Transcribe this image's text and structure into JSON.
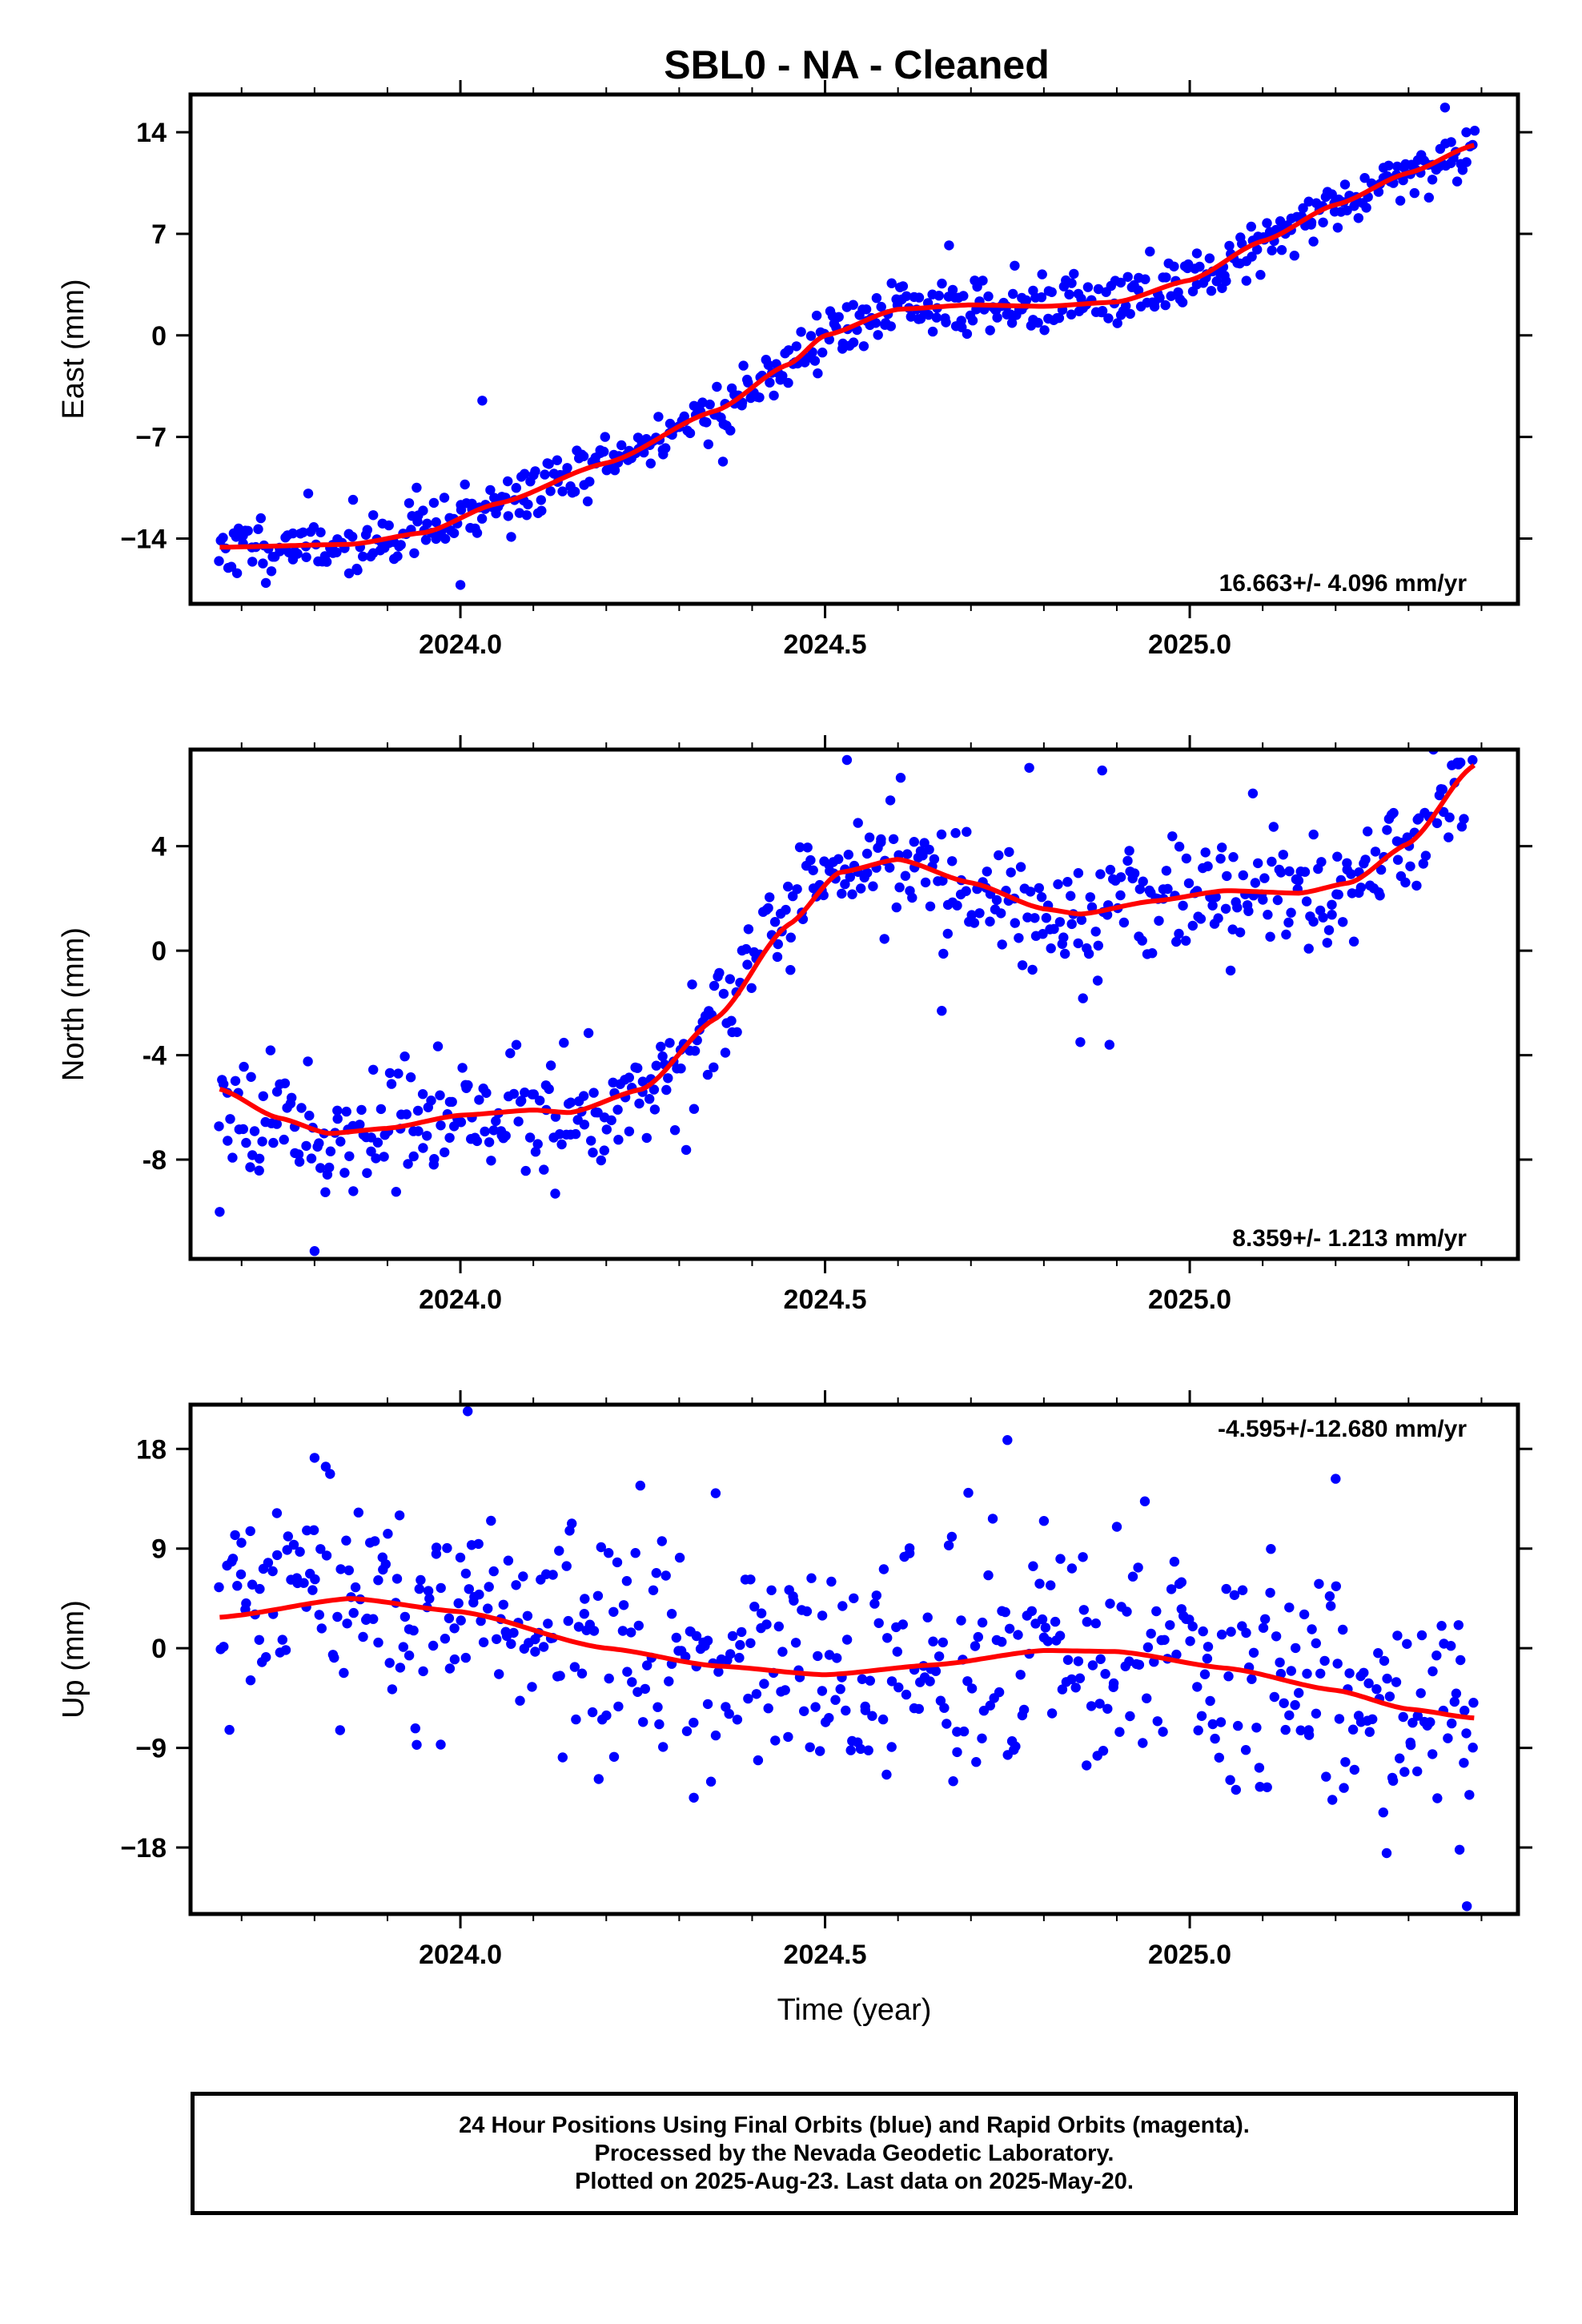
{
  "title": "SBL0  - NA - Cleaned",
  "footer": {
    "line1": "24 Hour Positions Using Final Orbits (blue) and Rapid Orbits (magenta).",
    "line2": "Processed by the Nevada Geodetic Laboratory.",
    "line3": "Plotted on 2025-Aug-23. Last data on 2025-May-20."
  },
  "colors": {
    "points": "#0000ff",
    "fit": "#ff0000",
    "frame": "#000000"
  },
  "chart_data": [
    {
      "type": "scatter",
      "ylabel": "East (mm)",
      "xlabel": "",
      "xlim": [
        2023.63,
        2025.45
      ],
      "ylim": [
        -18.5,
        16.6
      ],
      "yticks": [
        -14,
        -7,
        0,
        7,
        14
      ],
      "ytick_labels": [
        "−14",
        "−7",
        "0",
        "7",
        "14"
      ],
      "xticks": [
        2024.0,
        2024.5,
        2025.0
      ],
      "xtick_labels": [
        "2024.0",
        "2024.5",
        "2025.0"
      ],
      "rate_label": "16.663+/- 4.096 mm/yr",
      "rate_position": "bottom-right",
      "series": [
        {
          "kind": "points",
          "noise": 1.0,
          "seed": 11,
          "outliers": [
            [
              2024.0,
              -17.2
            ],
            [
              2023.94,
              -10.5
            ],
            [
              2024.03,
              -4.5
            ],
            [
              2024.67,
              6.2
            ],
            [
              2024.76,
              4.8
            ],
            [
              2024.36,
              -8.7
            ],
            [
              2025.35,
              15.7
            ]
          ]
        },
        {
          "kind": "fit",
          "knots": [
            [
              2023.67,
              -14.6
            ],
            [
              2023.85,
              -14.4
            ],
            [
              2023.95,
              -13.6
            ],
            [
              2024.05,
              -11.6
            ],
            [
              2024.2,
              -8.8
            ],
            [
              2024.35,
              -5.2
            ],
            [
              2024.45,
              -2.0
            ],
            [
              2024.5,
              0.0
            ],
            [
              2024.6,
              1.8
            ],
            [
              2024.7,
              2.1
            ],
            [
              2024.8,
              2.0
            ],
            [
              2024.9,
              2.3
            ],
            [
              2025.0,
              3.8
            ],
            [
              2025.1,
              6.5
            ],
            [
              2025.2,
              9.0
            ],
            [
              2025.3,
              11.2
            ],
            [
              2025.39,
              13.1
            ]
          ]
        }
      ]
    },
    {
      "type": "scatter",
      "ylabel": "North (mm)",
      "xlabel": "",
      "xlim": [
        2023.63,
        2025.45
      ],
      "ylim": [
        -11.8,
        7.7
      ],
      "yticks": [
        -8,
        -4,
        0,
        4
      ],
      "ytick_labels": [
        "-8",
        "-4",
        "0",
        "4"
      ],
      "xticks": [
        2024.0,
        2024.5,
        2025.0
      ],
      "xtick_labels": [
        "2024.0",
        "2024.5",
        "2025.0"
      ],
      "rate_label": "8.359+/- 1.213 mm/yr",
      "rate_position": "bottom-right",
      "series": [
        {
          "kind": "points",
          "noise": 1.1,
          "seed": 23,
          "outliers": [
            [
              2023.8,
              -11.5
            ],
            [
              2023.67,
              -10.0
            ],
            [
              2024.13,
              -9.3
            ],
            [
              2024.53,
              7.3
            ],
            [
              2024.78,
              7.0
            ],
            [
              2024.88,
              6.9
            ],
            [
              2024.85,
              -3.5
            ],
            [
              2024.89,
              -3.6
            ],
            [
              2024.66,
              -2.3
            ]
          ]
        },
        {
          "kind": "fit",
          "knots": [
            [
              2023.67,
              -5.3
            ],
            [
              2023.75,
              -6.4
            ],
            [
              2023.82,
              -7.0
            ],
            [
              2023.9,
              -6.8
            ],
            [
              2024.0,
              -6.3
            ],
            [
              2024.1,
              -6.1
            ],
            [
              2024.15,
              -6.2
            ],
            [
              2024.25,
              -5.3
            ],
            [
              2024.35,
              -2.6
            ],
            [
              2024.45,
              1.0
            ],
            [
              2024.52,
              3.0
            ],
            [
              2024.6,
              3.5
            ],
            [
              2024.7,
              2.6
            ],
            [
              2024.8,
              1.6
            ],
            [
              2024.85,
              1.4
            ],
            [
              2024.95,
              1.9
            ],
            [
              2025.05,
              2.3
            ],
            [
              2025.15,
              2.2
            ],
            [
              2025.22,
              2.6
            ],
            [
              2025.3,
              4.1
            ],
            [
              2025.39,
              7.1
            ]
          ]
        }
      ]
    },
    {
      "type": "scatter",
      "ylabel": "Up (mm)",
      "xlabel": "Time (year)",
      "xlim": [
        2023.63,
        2025.45
      ],
      "ylim": [
        -24,
        22
      ],
      "yticks": [
        -18,
        -9,
        0,
        9,
        18
      ],
      "ytick_labels": [
        "−18",
        "−9",
        "0",
        "9",
        "18"
      ],
      "xticks": [
        2024.0,
        2024.5,
        2025.0
      ],
      "xtick_labels": [
        "2024.0",
        "2024.5",
        "2025.0"
      ],
      "rate_label": "-4.595+/-12.680 mm/yr",
      "rate_position": "top-right",
      "series": [
        {
          "kind": "points",
          "noise": 5.0,
          "seed": 37,
          "outliers": [
            [
              2024.01,
              21.4
            ],
            [
              2023.8,
              17.2
            ],
            [
              2024.75,
              18.8
            ],
            [
              2025.2,
              15.3
            ],
            [
              2024.35,
              14.0
            ],
            [
              2024.32,
              -13.5
            ],
            [
              2024.8,
              11.5
            ],
            [
              2025.27,
              -18.5
            ],
            [
              2025.38,
              -23.3
            ],
            [
              2025.37,
              -18.2
            ]
          ]
        },
        {
          "kind": "fit",
          "knots": [
            [
              2023.67,
              2.8
            ],
            [
              2023.85,
              4.5
            ],
            [
              2024.0,
              3.3
            ],
            [
              2024.2,
              0.0
            ],
            [
              2024.35,
              -1.6
            ],
            [
              2024.5,
              -2.4
            ],
            [
              2024.65,
              -1.5
            ],
            [
              2024.8,
              -0.2
            ],
            [
              2024.9,
              -0.3
            ],
            [
              2025.05,
              -1.8
            ],
            [
              2025.2,
              -3.8
            ],
            [
              2025.3,
              -5.5
            ],
            [
              2025.39,
              -6.3
            ]
          ]
        }
      ]
    }
  ]
}
